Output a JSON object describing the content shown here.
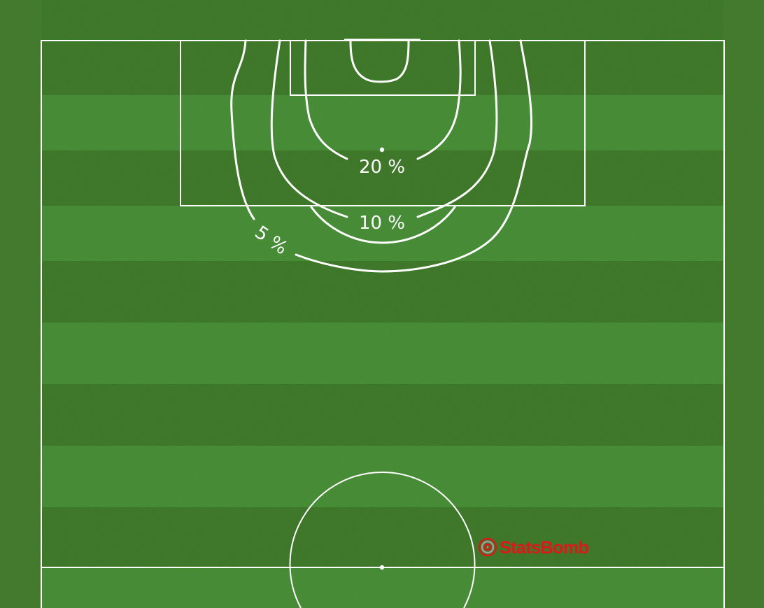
{
  "colors": {
    "grass_dark": "#417d2b",
    "grass_light": "#4a9238",
    "outer": "#46802f",
    "lines": "#ffffff",
    "brand_red": "#e3151b",
    "brand_grey": "#9aa49b"
  },
  "contours": {
    "inner_label": "20 %",
    "middle_label": "10 %",
    "outer_label": "5 %"
  },
  "brand": {
    "icon": "statsbomb-logo-icon",
    "name": "StatsBomb"
  }
}
